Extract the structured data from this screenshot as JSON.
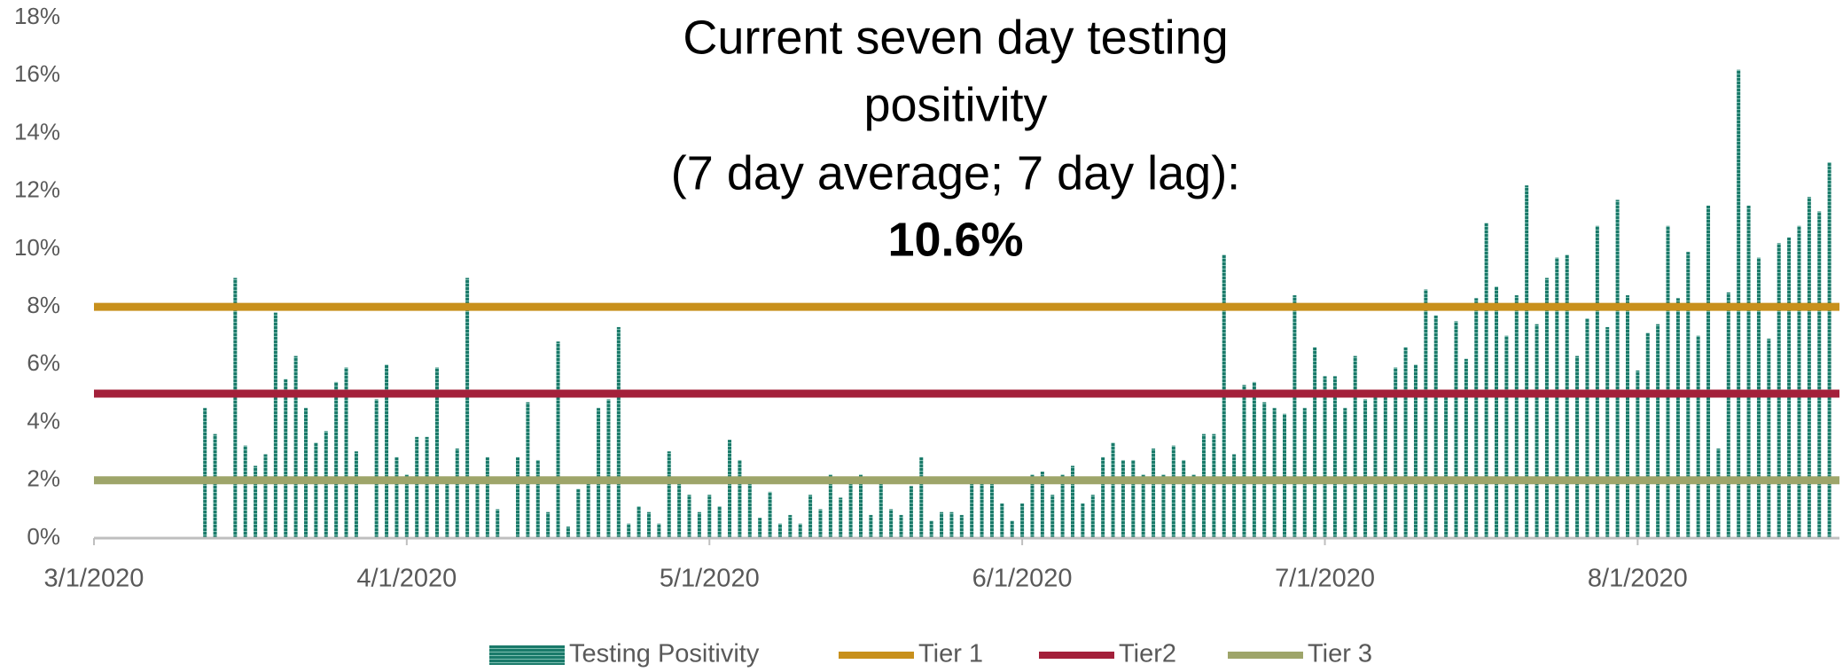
{
  "chart_data": {
    "type": "bar",
    "title": [
      "Current seven day testing",
      "positivity",
      "(7 day average; 7 day lag):",
      "10.6%"
    ],
    "x": [
      "3/12/2020",
      "3/13/2020",
      "3/14/2020",
      "3/15/2020",
      "3/16/2020",
      "3/17/2020",
      "3/18/2020",
      "3/19/2020",
      "3/20/2020",
      "3/21/2020",
      "3/22/2020",
      "3/23/2020",
      "3/24/2020",
      "3/25/2020",
      "3/26/2020",
      "3/27/2020",
      "3/28/2020",
      "3/29/2020",
      "3/30/2020",
      "3/31/2020",
      "4/1/2020",
      "4/2/2020",
      "4/3/2020",
      "4/4/2020",
      "4/5/2020",
      "4/6/2020",
      "4/7/2020",
      "4/8/2020",
      "4/9/2020",
      "4/10/2020",
      "4/11/2020",
      "4/12/2020",
      "4/13/2020",
      "4/14/2020",
      "4/15/2020",
      "4/16/2020",
      "4/17/2020",
      "4/18/2020",
      "4/19/2020",
      "4/20/2020",
      "4/21/2020",
      "4/22/2020",
      "4/23/2020",
      "4/24/2020",
      "4/25/2020",
      "4/26/2020",
      "4/27/2020",
      "4/28/2020",
      "4/29/2020",
      "4/30/2020",
      "5/1/2020",
      "5/2/2020",
      "5/3/2020",
      "5/4/2020",
      "5/5/2020",
      "5/6/2020",
      "5/7/2020",
      "5/8/2020",
      "5/9/2020",
      "5/10/2020",
      "5/11/2020",
      "5/12/2020",
      "5/13/2020",
      "5/14/2020",
      "5/15/2020",
      "5/16/2020",
      "5/17/2020",
      "5/18/2020",
      "5/19/2020",
      "5/20/2020",
      "5/21/2020",
      "5/22/2020",
      "5/23/2020",
      "5/24/2020",
      "5/25/2020",
      "5/26/2020",
      "5/27/2020",
      "5/28/2020",
      "5/29/2020",
      "5/30/2020",
      "5/31/2020",
      "6/1/2020",
      "6/2/2020",
      "6/3/2020",
      "6/4/2020",
      "6/5/2020",
      "6/6/2020",
      "6/7/2020",
      "6/8/2020",
      "6/9/2020",
      "6/10/2020",
      "6/11/2020",
      "6/12/2020",
      "6/13/2020",
      "6/14/2020",
      "6/15/2020",
      "6/16/2020",
      "6/17/2020",
      "6/18/2020",
      "6/19/2020",
      "6/20/2020",
      "6/21/2020",
      "6/22/2020",
      "6/23/2020",
      "6/24/2020",
      "6/25/2020",
      "6/26/2020",
      "6/27/2020",
      "6/28/2020",
      "6/29/2020",
      "6/30/2020",
      "7/1/2020",
      "7/2/2020",
      "7/3/2020",
      "7/4/2020",
      "7/5/2020",
      "7/6/2020",
      "7/7/2020",
      "7/8/2020",
      "7/9/2020",
      "7/10/2020",
      "7/11/2020",
      "7/12/2020",
      "7/13/2020",
      "7/14/2020",
      "7/15/2020",
      "7/16/2020",
      "7/17/2020",
      "7/18/2020",
      "7/19/2020",
      "7/20/2020",
      "7/21/2020",
      "7/22/2020",
      "7/23/2020",
      "7/24/2020",
      "7/25/2020",
      "7/26/2020",
      "7/27/2020",
      "7/28/2020",
      "7/29/2020",
      "7/30/2020",
      "7/31/2020",
      "8/1/2020",
      "8/2/2020",
      "8/3/2020",
      "8/4/2020",
      "8/5/2020",
      "8/6/2020",
      "8/7/2020",
      "8/8/2020",
      "8/9/2020",
      "8/10/2020",
      "8/11/2020",
      "8/12/2020",
      "8/13/2020",
      "8/14/2020",
      "8/15/2020",
      "8/16/2020",
      "8/17/2020",
      "8/18/2020",
      "8/19/2020",
      "8/20/2020"
    ],
    "series": [
      {
        "name": "Testing Positivity",
        "color": "#1a7a6a",
        "values": [
          4.5,
          3.6,
          0,
          9.0,
          3.2,
          2.5,
          2.9,
          7.8,
          5.5,
          6.3,
          4.5,
          3.3,
          3.7,
          5.4,
          5.9,
          3.0,
          0,
          4.8,
          6.0,
          2.8,
          2.2,
          3.5,
          3.5,
          5.9,
          2.0,
          3.1,
          9.0,
          2.0,
          2.8,
          1.0,
          0,
          2.8,
          4.7,
          2.7,
          0.9,
          6.8,
          0.4,
          1.7,
          1.9,
          4.5,
          4.8,
          7.3,
          0.5,
          1.1,
          0.9,
          0.5,
          3.0,
          2.0,
          1.5,
          0.9,
          1.5,
          1.1,
          3.4,
          2.7,
          2.0,
          0.7,
          1.6,
          0.5,
          0.8,
          0.5,
          1.5,
          1.0,
          2.2,
          1.4,
          2.0,
          2.2,
          0.8,
          2.0,
          1.0,
          0.8,
          1.8,
          2.8,
          0.6,
          0.9,
          0.9,
          0.8,
          1.9,
          1.9,
          1.9,
          1.2,
          0.6,
          1.2,
          2.2,
          2.3,
          1.5,
          2.2,
          2.5,
          1.2,
          1.5,
          2.8,
          3.3,
          2.7,
          2.7,
          2.2,
          3.1,
          2.2,
          3.2,
          2.7,
          2.2,
          3.6,
          3.6,
          9.8,
          2.9,
          5.3,
          5.4,
          4.7,
          4.5,
          4.3,
          8.4,
          4.5,
          6.6,
          5.6,
          5.6,
          4.5,
          6.3,
          4.8,
          5.1,
          4.9,
          5.9,
          6.6,
          6.0,
          8.6,
          7.7,
          5.0,
          7.5,
          6.2,
          8.3,
          10.9,
          8.7,
          7.0,
          8.4,
          12.2,
          7.4,
          9.0,
          9.7,
          9.8,
          6.3,
          7.6,
          10.8,
          7.3,
          11.7,
          8.4,
          5.8,
          7.1,
          7.4,
          10.8,
          8.3,
          9.9,
          7.0,
          11.5,
          3.1,
          8.5,
          16.2,
          11.5,
          9.7,
          6.9,
          10.2,
          10.4,
          10.8,
          11.8,
          11.3,
          13.0
        ]
      }
    ],
    "reference_lines": [
      {
        "name": "Tier 1",
        "value": 8,
        "color": "#c8901c"
      },
      {
        "name": "Tier2",
        "value": 5,
        "color": "#a3203a"
      },
      {
        "name": "Tier 3",
        "value": 2,
        "color": "#9ea56a"
      }
    ],
    "xlim": [
      "3/1/2020",
      "8/21/2020"
    ],
    "xticks": [
      "3/1/2020",
      "4/1/2020",
      "5/1/2020",
      "6/1/2020",
      "7/1/2020",
      "8/1/2020"
    ],
    "ylim": [
      0,
      18
    ],
    "yticks": [
      {
        "value": 0,
        "label": "0%"
      },
      {
        "value": 2,
        "label": "2%"
      },
      {
        "value": 4,
        "label": "4%"
      },
      {
        "value": 6,
        "label": "6%"
      },
      {
        "value": 8,
        "label": "8%"
      },
      {
        "value": 10,
        "label": "10%"
      },
      {
        "value": 12,
        "label": "12%"
      },
      {
        "value": 14,
        "label": "14%"
      },
      {
        "value": 16,
        "label": "16%"
      },
      {
        "value": 18,
        "label": "18%"
      }
    ],
    "legend": "bottom"
  }
}
